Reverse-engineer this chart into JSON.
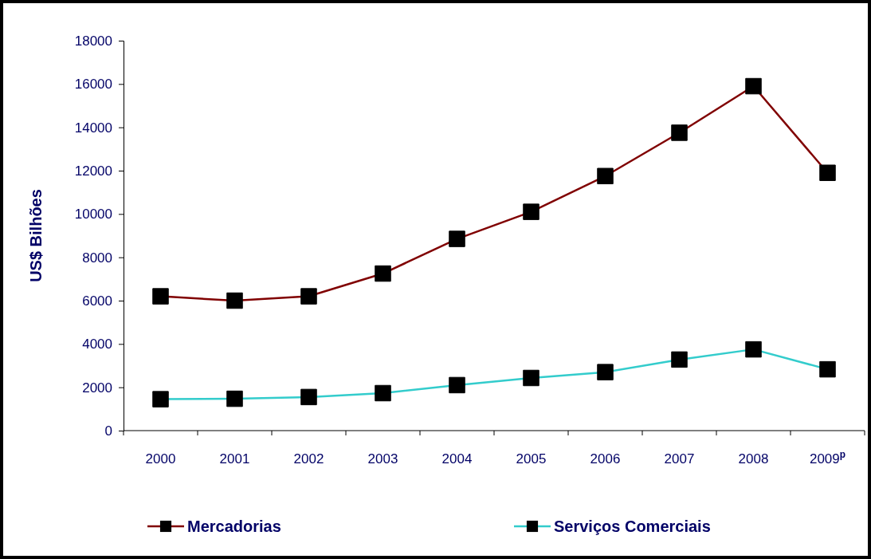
{
  "chart_data": {
    "type": "line",
    "ylabel": "US$ Bilhões",
    "categories": [
      "2000",
      "2001",
      "2002",
      "2003",
      "2004",
      "2005",
      "2006",
      "2007",
      "2008",
      "2009$^{p}$"
    ],
    "series": [
      {
        "name": "Mercadorias",
        "color": "#800000",
        "values": [
          6200,
          6000,
          6200,
          7250,
          8850,
          10100,
          11750,
          13750,
          15900,
          11900
        ]
      },
      {
        "name": "Serviços Comerciais",
        "color": "#33cccc",
        "values": [
          1450,
          1470,
          1550,
          1730,
          2100,
          2430,
          2700,
          3280,
          3750,
          2830
        ]
      }
    ],
    "ylim": [
      0,
      18000
    ],
    "yticks": [
      0,
      2000,
      4000,
      6000,
      8000,
      10000,
      12000,
      14000,
      16000,
      18000
    ],
    "grid": false,
    "legend": "bottom",
    "marker": "square",
    "line_style": "solid"
  }
}
